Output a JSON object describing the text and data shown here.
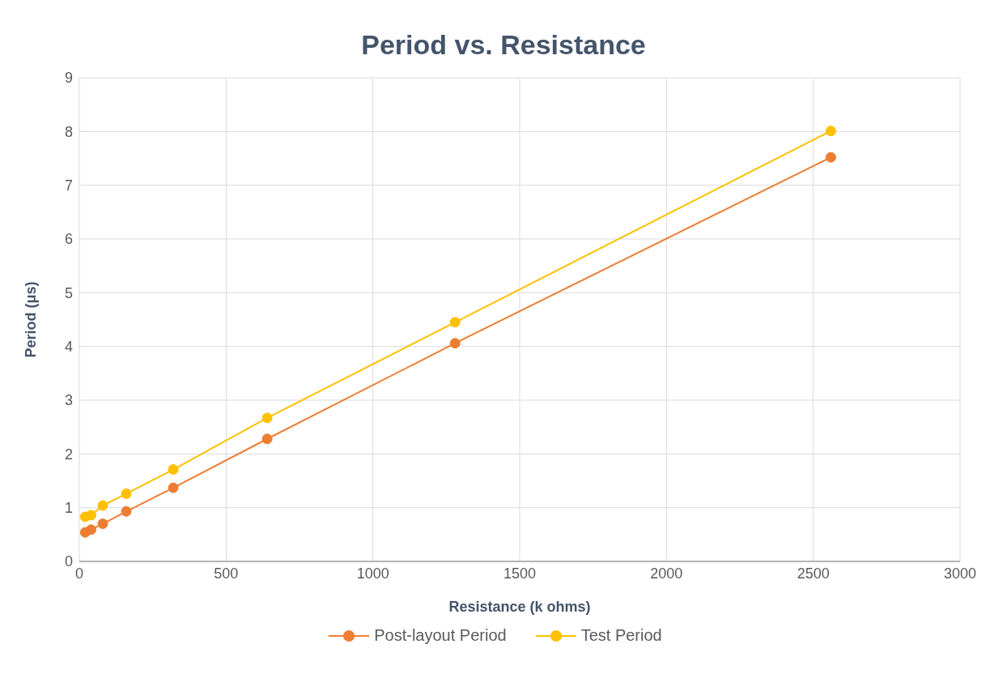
{
  "chart_data": {
    "type": "line",
    "title": "Period vs. Resistance",
    "xlabel": "Resistance (k ohms)",
    "ylabel": "Period (μs)",
    "x": [
      20,
      40,
      80,
      160,
      320,
      640,
      1280,
      2560
    ],
    "series": [
      {
        "name": "Post-layout Period",
        "color": "#ed7d31",
        "values": [
          0.54,
          0.59,
          0.7,
          0.93,
          1.37,
          2.28,
          4.06,
          7.52
        ]
      },
      {
        "name": "Test Period",
        "color": "#ffc000",
        "values": [
          0.83,
          0.86,
          1.04,
          1.26,
          1.71,
          2.67,
          4.45,
          8.01
        ]
      }
    ],
    "xlim": [
      0,
      3000
    ],
    "xticks": [
      0,
      500,
      1000,
      1500,
      2000,
      2500,
      3000
    ],
    "ylim": [
      0,
      9
    ],
    "yticks": [
      0,
      1,
      2,
      3,
      4,
      5,
      6,
      7,
      8,
      9
    ],
    "grid": true,
    "legend": "bottom",
    "marker": "circle",
    "line_style": "solid"
  }
}
